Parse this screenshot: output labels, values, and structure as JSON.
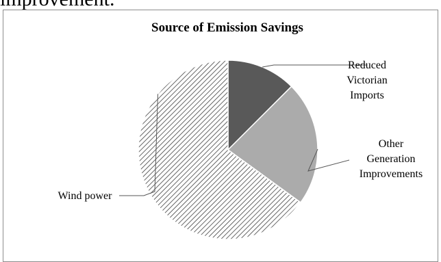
{
  "document": {
    "fragment_text": "improvement."
  },
  "chart_data": {
    "type": "pie",
    "title": "Source of Emission Savings",
    "slices": [
      {
        "label": "Reduced Victorian Imports",
        "label_lines": [
          "Reduced",
          "Victorian",
          "Imports"
        ],
        "value": 12.5,
        "fill": "#595959"
      },
      {
        "label": "Other Generation Improvements",
        "label_lines": [
          "Other",
          "Generation",
          "Improvements"
        ],
        "value": 22.5,
        "fill": "#ababab"
      },
      {
        "label": "Wind power",
        "label_lines": [
          "Wind power"
        ],
        "value": 65.0,
        "fill": "hatch"
      }
    ],
    "start_angle_deg": 0,
    "direction": "clockwise",
    "legend": "none",
    "data_labels": "category names with leader lines"
  }
}
